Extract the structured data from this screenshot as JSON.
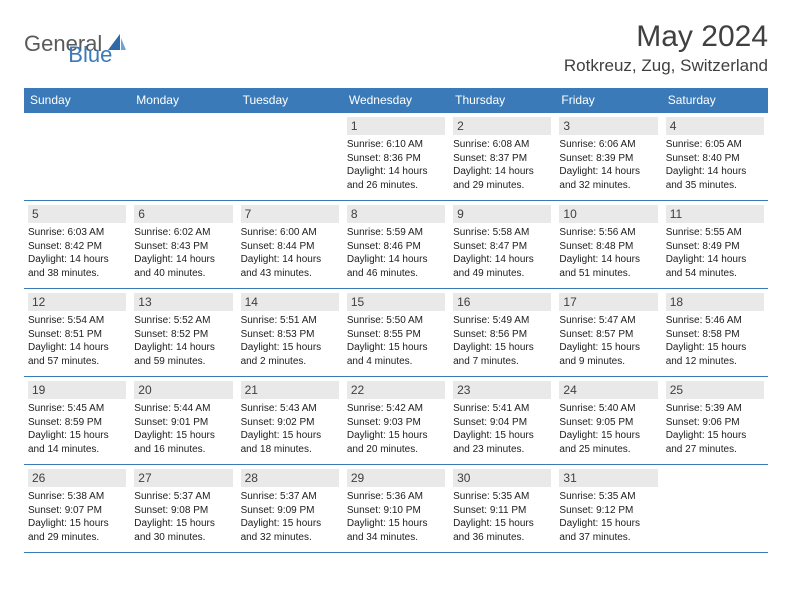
{
  "logo": {
    "text1": "General",
    "text2": "Blue"
  },
  "title": "May 2024",
  "location": "Rotkreuz, Zug, Switzerland",
  "colors": {
    "header_blue": "#3b7ab8",
    "daynum_bg": "#e9e9e9",
    "text_dark": "#404040",
    "white": "#ffffff"
  },
  "dayNames": [
    "Sunday",
    "Monday",
    "Tuesday",
    "Wednesday",
    "Thursday",
    "Friday",
    "Saturday"
  ],
  "weeks": [
    [
      {
        "n": "",
        "r": "",
        "s": "",
        "d": ""
      },
      {
        "n": "",
        "r": "",
        "s": "",
        "d": ""
      },
      {
        "n": "",
        "r": "",
        "s": "",
        "d": ""
      },
      {
        "n": "1",
        "r": "6:10 AM",
        "s": "8:36 PM",
        "d": "14 hours and 26 minutes."
      },
      {
        "n": "2",
        "r": "6:08 AM",
        "s": "8:37 PM",
        "d": "14 hours and 29 minutes."
      },
      {
        "n": "3",
        "r": "6:06 AM",
        "s": "8:39 PM",
        "d": "14 hours and 32 minutes."
      },
      {
        "n": "4",
        "r": "6:05 AM",
        "s": "8:40 PM",
        "d": "14 hours and 35 minutes."
      }
    ],
    [
      {
        "n": "5",
        "r": "6:03 AM",
        "s": "8:42 PM",
        "d": "14 hours and 38 minutes."
      },
      {
        "n": "6",
        "r": "6:02 AM",
        "s": "8:43 PM",
        "d": "14 hours and 40 minutes."
      },
      {
        "n": "7",
        "r": "6:00 AM",
        "s": "8:44 PM",
        "d": "14 hours and 43 minutes."
      },
      {
        "n": "8",
        "r": "5:59 AM",
        "s": "8:46 PM",
        "d": "14 hours and 46 minutes."
      },
      {
        "n": "9",
        "r": "5:58 AM",
        "s": "8:47 PM",
        "d": "14 hours and 49 minutes."
      },
      {
        "n": "10",
        "r": "5:56 AM",
        "s": "8:48 PM",
        "d": "14 hours and 51 minutes."
      },
      {
        "n": "11",
        "r": "5:55 AM",
        "s": "8:49 PM",
        "d": "14 hours and 54 minutes."
      }
    ],
    [
      {
        "n": "12",
        "r": "5:54 AM",
        "s": "8:51 PM",
        "d": "14 hours and 57 minutes."
      },
      {
        "n": "13",
        "r": "5:52 AM",
        "s": "8:52 PM",
        "d": "14 hours and 59 minutes."
      },
      {
        "n": "14",
        "r": "5:51 AM",
        "s": "8:53 PM",
        "d": "15 hours and 2 minutes."
      },
      {
        "n": "15",
        "r": "5:50 AM",
        "s": "8:55 PM",
        "d": "15 hours and 4 minutes."
      },
      {
        "n": "16",
        "r": "5:49 AM",
        "s": "8:56 PM",
        "d": "15 hours and 7 minutes."
      },
      {
        "n": "17",
        "r": "5:47 AM",
        "s": "8:57 PM",
        "d": "15 hours and 9 minutes."
      },
      {
        "n": "18",
        "r": "5:46 AM",
        "s": "8:58 PM",
        "d": "15 hours and 12 minutes."
      }
    ],
    [
      {
        "n": "19",
        "r": "5:45 AM",
        "s": "8:59 PM",
        "d": "15 hours and 14 minutes."
      },
      {
        "n": "20",
        "r": "5:44 AM",
        "s": "9:01 PM",
        "d": "15 hours and 16 minutes."
      },
      {
        "n": "21",
        "r": "5:43 AM",
        "s": "9:02 PM",
        "d": "15 hours and 18 minutes."
      },
      {
        "n": "22",
        "r": "5:42 AM",
        "s": "9:03 PM",
        "d": "15 hours and 20 minutes."
      },
      {
        "n": "23",
        "r": "5:41 AM",
        "s": "9:04 PM",
        "d": "15 hours and 23 minutes."
      },
      {
        "n": "24",
        "r": "5:40 AM",
        "s": "9:05 PM",
        "d": "15 hours and 25 minutes."
      },
      {
        "n": "25",
        "r": "5:39 AM",
        "s": "9:06 PM",
        "d": "15 hours and 27 minutes."
      }
    ],
    [
      {
        "n": "26",
        "r": "5:38 AM",
        "s": "9:07 PM",
        "d": "15 hours and 29 minutes."
      },
      {
        "n": "27",
        "r": "5:37 AM",
        "s": "9:08 PM",
        "d": "15 hours and 30 minutes."
      },
      {
        "n": "28",
        "r": "5:37 AM",
        "s": "9:09 PM",
        "d": "15 hours and 32 minutes."
      },
      {
        "n": "29",
        "r": "5:36 AM",
        "s": "9:10 PM",
        "d": "15 hours and 34 minutes."
      },
      {
        "n": "30",
        "r": "5:35 AM",
        "s": "9:11 PM",
        "d": "15 hours and 36 minutes."
      },
      {
        "n": "31",
        "r": "5:35 AM",
        "s": "9:12 PM",
        "d": "15 hours and 37 minutes."
      },
      {
        "n": "",
        "r": "",
        "s": "",
        "d": ""
      }
    ]
  ]
}
